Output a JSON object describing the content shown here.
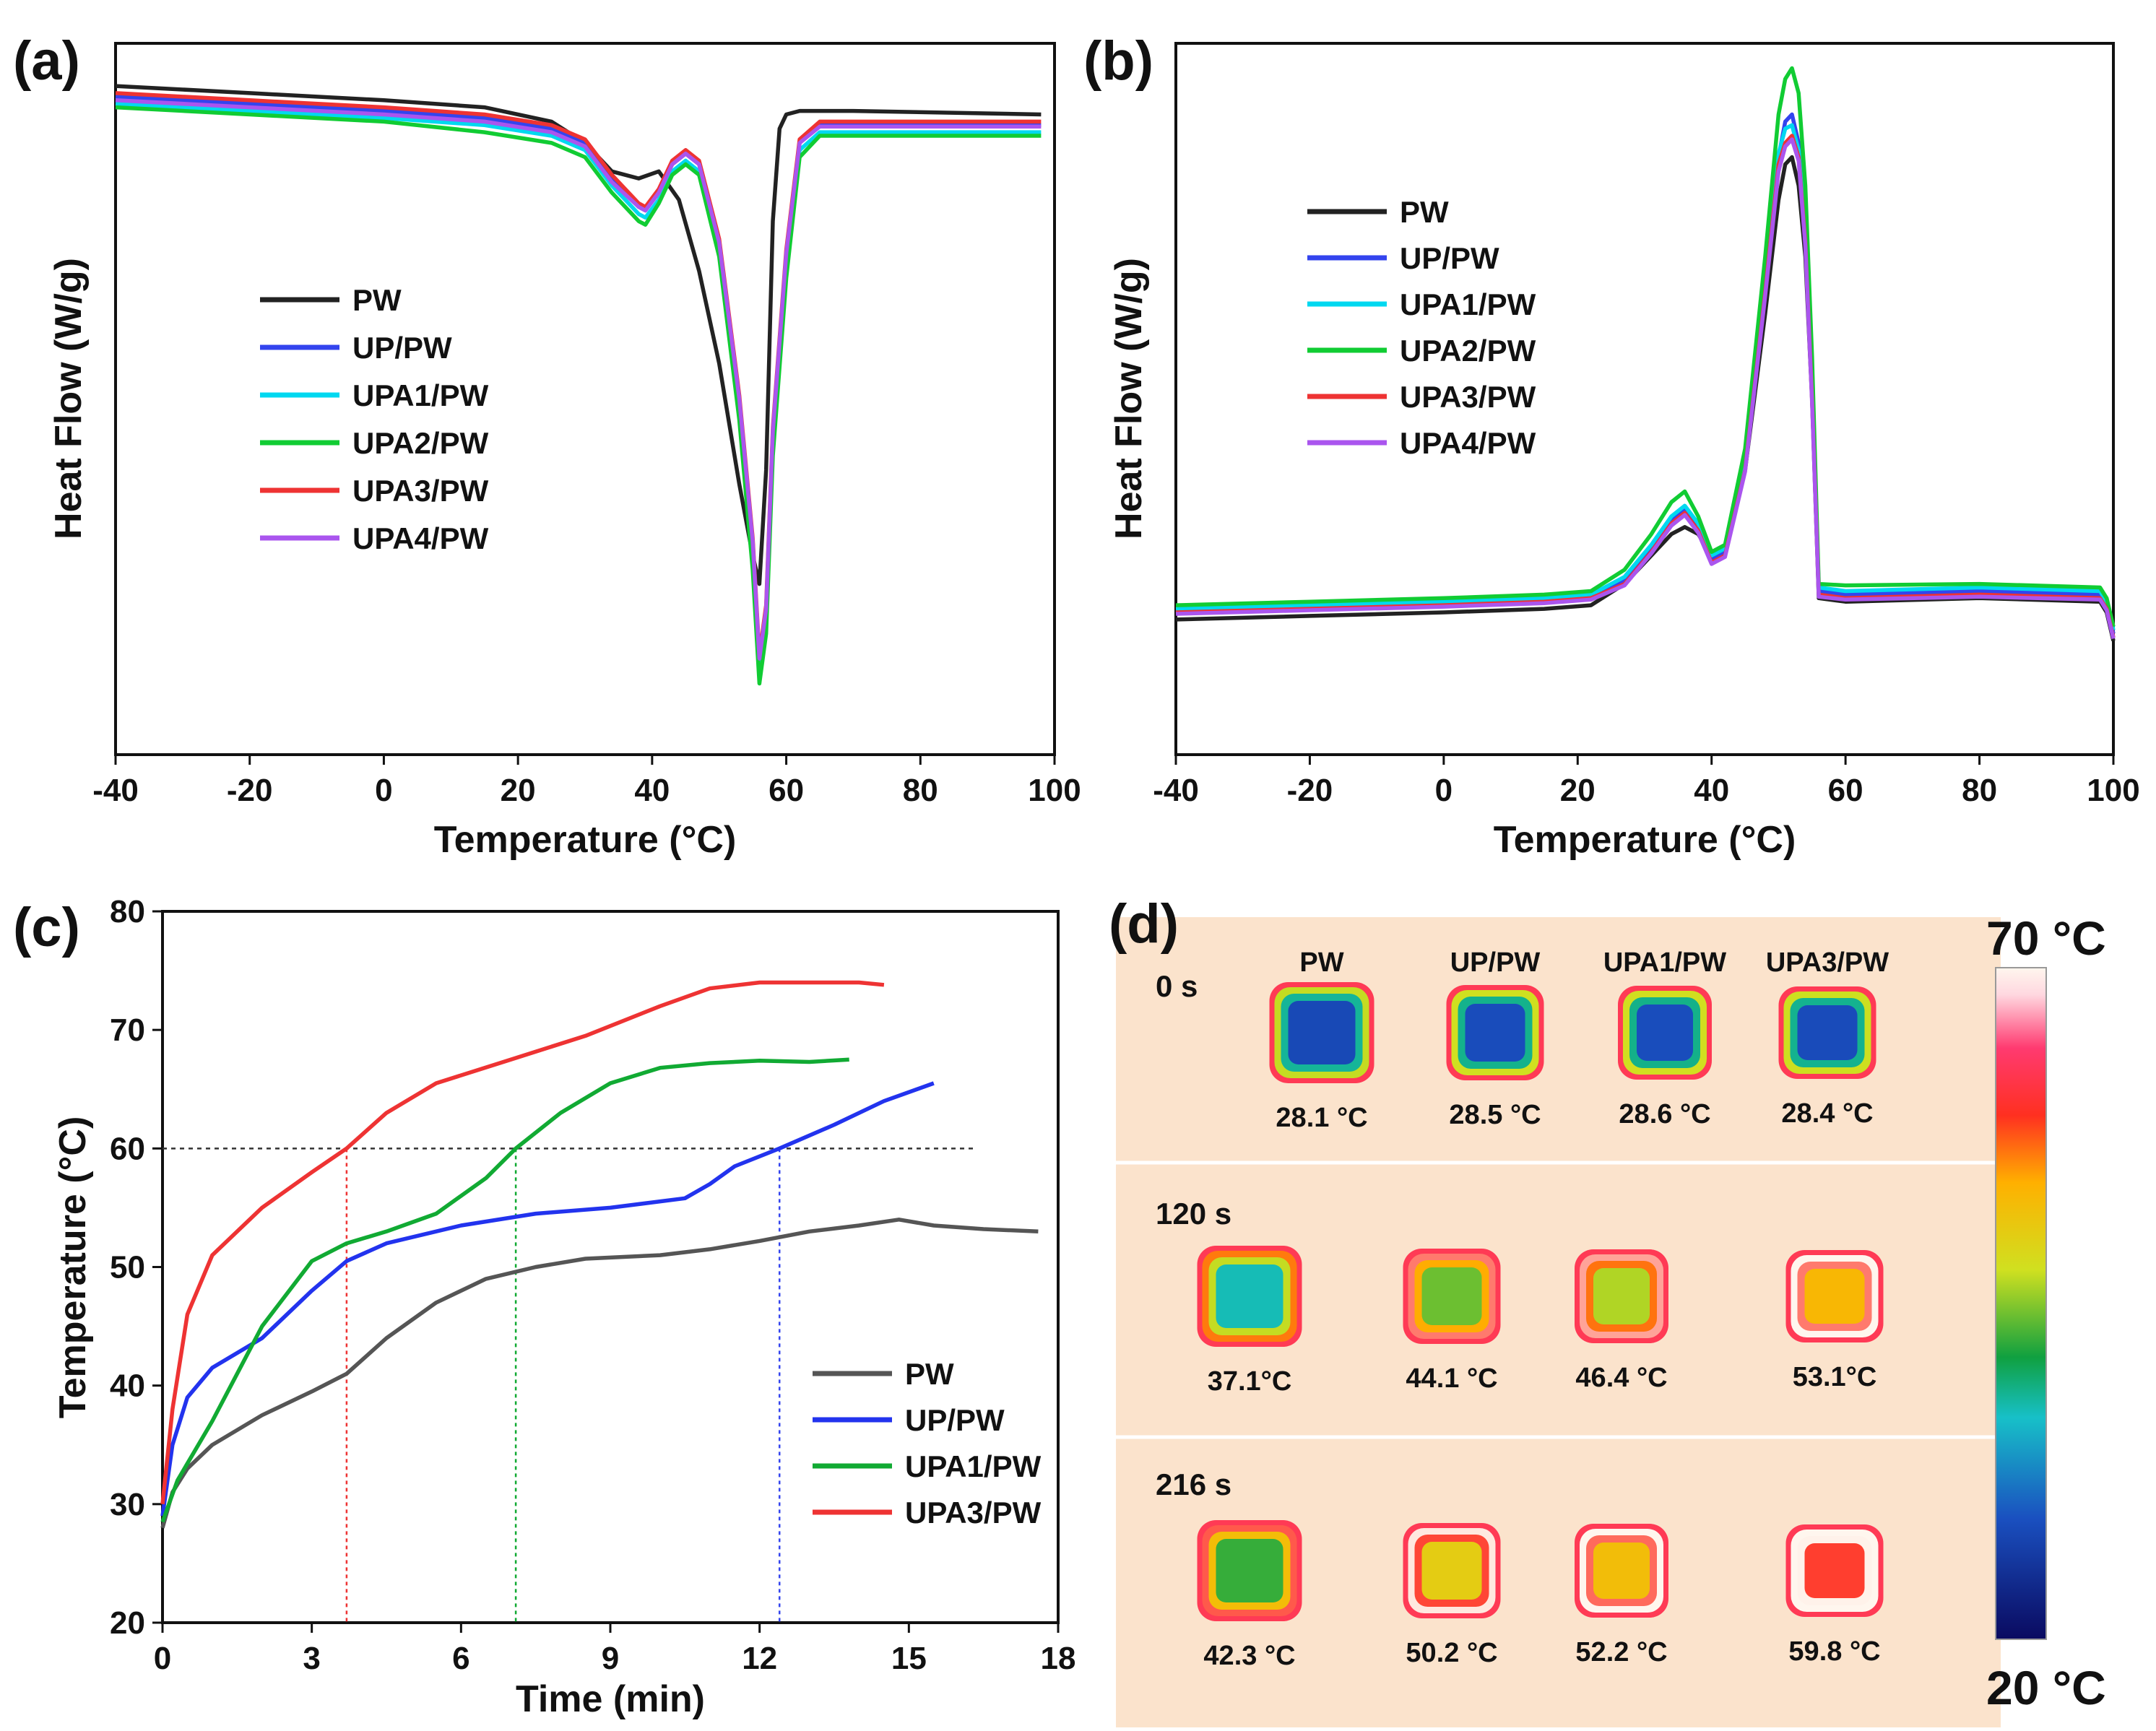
{
  "panels": {
    "a": {
      "letter": "(a)",
      "chart_data": {
        "type": "line",
        "title": "",
        "xlabel": "Temperature (°C)",
        "ylabel": "Heat Flow (W/g)",
        "xlim": [
          -40,
          100
        ],
        "ylim": [
          0,
          1
        ],
        "xticks": [
          "-40",
          "-20",
          "0",
          "20",
          "40",
          "60",
          "80",
          "100"
        ],
        "series": [
          {
            "name": "PW",
            "color": "#222222",
            "x": [
              -40,
              -20,
              0,
              15,
              25,
              30,
              34,
              38,
              41,
              44,
              47,
              50,
              53,
              55,
              56,
              57,
              58,
              59,
              60,
              62,
              70,
              98
            ],
            "y": [
              0.94,
              0.93,
              0.92,
              0.91,
              0.89,
              0.86,
              0.82,
              0.81,
              0.82,
              0.78,
              0.68,
              0.55,
              0.38,
              0.28,
              0.24,
              0.4,
              0.75,
              0.88,
              0.9,
              0.905,
              0.905,
              0.9
            ]
          },
          {
            "name": "UP/PW",
            "color": "#3344ee",
            "x": [
              -40,
              -20,
              0,
              15,
              25,
              30,
              34,
              38,
              39,
              41,
              43,
              45,
              47,
              50,
              53,
              55,
              56,
              57,
              58,
              60,
              62,
              65,
              98
            ],
            "y": [
              0.925,
              0.915,
              0.905,
              0.895,
              0.88,
              0.86,
              0.81,
              0.77,
              0.765,
              0.79,
              0.83,
              0.845,
              0.83,
              0.72,
              0.5,
              0.3,
              0.13,
              0.2,
              0.45,
              0.7,
              0.86,
              0.885,
              0.885
            ]
          },
          {
            "name": "UPA1/PW",
            "color": "#00d8f0",
            "x": [
              -40,
              -20,
              0,
              15,
              25,
              30,
              34,
              38,
              39,
              41,
              43,
              45,
              47,
              50,
              53,
              55,
              56,
              57,
              58,
              60,
              62,
              65,
              98
            ],
            "y": [
              0.915,
              0.905,
              0.895,
              0.885,
              0.87,
              0.85,
              0.8,
              0.76,
              0.755,
              0.78,
              0.82,
              0.835,
              0.82,
              0.71,
              0.49,
              0.29,
              0.12,
              0.19,
              0.44,
              0.69,
              0.85,
              0.875,
              0.875
            ]
          },
          {
            "name": "UPA2/PW",
            "color": "#11cc33",
            "x": [
              -40,
              -20,
              0,
              15,
              25,
              30,
              34,
              38,
              39,
              41,
              43,
              45,
              47,
              50,
              53,
              55,
              56,
              57,
              58,
              60,
              62,
              65,
              98
            ],
            "y": [
              0.91,
              0.9,
              0.89,
              0.875,
              0.86,
              0.84,
              0.79,
              0.75,
              0.745,
              0.775,
              0.815,
              0.83,
              0.815,
              0.7,
              0.47,
              0.26,
              0.1,
              0.17,
              0.42,
              0.67,
              0.84,
              0.87,
              0.87
            ]
          },
          {
            "name": "UPA3/PW",
            "color": "#ee3333",
            "x": [
              -40,
              -20,
              0,
              15,
              25,
              30,
              34,
              38,
              39,
              41,
              43,
              45,
              47,
              50,
              53,
              55,
              56,
              57,
              58,
              60,
              62,
              65,
              98
            ],
            "y": [
              0.93,
              0.92,
              0.91,
              0.9,
              0.885,
              0.865,
              0.815,
              0.775,
              0.77,
              0.795,
              0.835,
              0.85,
              0.835,
              0.725,
              0.505,
              0.305,
              0.14,
              0.21,
              0.46,
              0.71,
              0.865,
              0.89,
              0.89
            ]
          },
          {
            "name": "UPA4/PW",
            "color": "#aa55ee",
            "x": [
              -40,
              -20,
              0,
              15,
              25,
              30,
              34,
              38,
              39,
              41,
              43,
              45,
              47,
              50,
              53,
              55,
              56,
              57,
              58,
              60,
              62,
              65,
              98
            ],
            "y": [
              0.92,
              0.91,
              0.9,
              0.89,
              0.875,
              0.855,
              0.805,
              0.77,
              0.765,
              0.79,
              0.83,
              0.845,
              0.83,
              0.72,
              0.5,
              0.3,
              0.135,
              0.205,
              0.455,
              0.705,
              0.86,
              0.883,
              0.883
            ]
          }
        ]
      }
    },
    "b": {
      "letter": "(b)",
      "chart_data": {
        "type": "line",
        "title": "",
        "xlabel": "Temperature (°C)",
        "ylabel": "Heat Flow (W/g)",
        "xlim": [
          -40,
          100
        ],
        "ylim": [
          0,
          1
        ],
        "xticks": [
          "-40",
          "-20",
          "0",
          "20",
          "40",
          "60",
          "80",
          "100"
        ],
        "series": [
          {
            "name": "PW",
            "color": "#222222",
            "x": [
              -40,
              -20,
              0,
              15,
              22,
              27,
              31,
              34,
              36,
              38,
              40,
              42,
              45,
              48,
              50,
              51,
              52,
              53,
              54,
              55,
              56,
              60,
              80,
              98,
              99,
              100
            ],
            "y": [
              0.19,
              0.195,
              0.2,
              0.205,
              0.21,
              0.24,
              0.28,
              0.31,
              0.32,
              0.31,
              0.28,
              0.29,
              0.4,
              0.62,
              0.78,
              0.83,
              0.84,
              0.8,
              0.7,
              0.5,
              0.22,
              0.215,
              0.22,
              0.215,
              0.2,
              0.16
            ]
          },
          {
            "name": "UP/PW",
            "color": "#3344ee",
            "x": [
              -40,
              -20,
              0,
              15,
              22,
              27,
              31,
              34,
              36,
              38,
              40,
              42,
              45,
              48,
              50,
              51,
              52,
              53,
              54,
              55,
              56,
              60,
              80,
              98,
              99,
              100
            ],
            "y": [
              0.2,
              0.205,
              0.21,
              0.215,
              0.22,
              0.245,
              0.29,
              0.33,
              0.345,
              0.32,
              0.275,
              0.285,
              0.41,
              0.66,
              0.84,
              0.89,
              0.9,
              0.86,
              0.74,
              0.52,
              0.23,
              0.225,
              0.23,
              0.225,
              0.21,
              0.17
            ]
          },
          {
            "name": "UPA1/PW",
            "color": "#00d8f0",
            "x": [
              -40,
              -20,
              0,
              15,
              22,
              27,
              31,
              34,
              36,
              38,
              40,
              42,
              45,
              48,
              50,
              51,
              52,
              53,
              54,
              55,
              56,
              60,
              80,
              98,
              99,
              100
            ],
            "y": [
              0.205,
              0.21,
              0.215,
              0.22,
              0.225,
              0.25,
              0.295,
              0.335,
              0.35,
              0.325,
              0.28,
              0.29,
              0.415,
              0.665,
              0.845,
              0.88,
              0.885,
              0.85,
              0.73,
              0.51,
              0.235,
              0.23,
              0.235,
              0.23,
              0.215,
              0.175
            ]
          },
          {
            "name": "UPA2/PW",
            "color": "#11cc33",
            "x": [
              -40,
              -20,
              0,
              15,
              22,
              27,
              31,
              34,
              36,
              38,
              40,
              42,
              45,
              48,
              50,
              51,
              52,
              53,
              54,
              55,
              56,
              60,
              80,
              98,
              99,
              100
            ],
            "y": [
              0.21,
              0.215,
              0.22,
              0.225,
              0.23,
              0.26,
              0.31,
              0.355,
              0.37,
              0.335,
              0.285,
              0.295,
              0.43,
              0.7,
              0.9,
              0.95,
              0.965,
              0.93,
              0.8,
              0.56,
              0.24,
              0.238,
              0.24,
              0.235,
              0.22,
              0.18
            ]
          },
          {
            "name": "UPA3/PW",
            "color": "#ee3333",
            "x": [
              -40,
              -20,
              0,
              15,
              22,
              27,
              31,
              34,
              36,
              38,
              40,
              42,
              45,
              48,
              50,
              51,
              52,
              53,
              54,
              55,
              56,
              60,
              80,
              98,
              99,
              100
            ],
            "y": [
              0.2,
              0.205,
              0.21,
              0.215,
              0.22,
              0.24,
              0.285,
              0.325,
              0.34,
              0.315,
              0.27,
              0.28,
              0.4,
              0.65,
              0.83,
              0.86,
              0.87,
              0.84,
              0.72,
              0.5,
              0.225,
              0.22,
              0.225,
              0.22,
              0.205,
              0.165
            ]
          },
          {
            "name": "UPA4/PW",
            "color": "#aa55ee",
            "x": [
              -40,
              -20,
              0,
              15,
              22,
              27,
              31,
              34,
              36,
              38,
              40,
              42,
              45,
              48,
              50,
              51,
              52,
              53,
              54,
              55,
              56,
              60,
              80,
              98,
              99,
              100
            ],
            "y": [
              0.198,
              0.203,
              0.208,
              0.213,
              0.218,
              0.238,
              0.283,
              0.322,
              0.337,
              0.312,
              0.268,
              0.278,
              0.398,
              0.645,
              0.82,
              0.855,
              0.865,
              0.835,
              0.715,
              0.495,
              0.222,
              0.218,
              0.222,
              0.218,
              0.203,
              0.163
            ]
          }
        ]
      }
    },
    "c": {
      "letter": "(c)",
      "chart_data": {
        "type": "line",
        "title": "",
        "xlabel": "Time (min)",
        "ylabel": "Temperature (°C)",
        "xlim": [
          0,
          18
        ],
        "ylim": [
          20,
          80
        ],
        "xticks": [
          "0",
          "3",
          "6",
          "9",
          "12",
          "15",
          "18"
        ],
        "yticks": [
          "20",
          "30",
          "40",
          "50",
          "60",
          "70",
          "80"
        ],
        "reference_line": {
          "y": 60,
          "x_end": 16.3
        },
        "markers_at_60": [
          {
            "x": 3.7,
            "color": "#ee3333"
          },
          {
            "x": 7.1,
            "color": "#11aa33"
          },
          {
            "x": 12.4,
            "color": "#3344ee"
          }
        ],
        "series": [
          {
            "name": "PW",
            "color": "#555555",
            "x": [
              0,
              0.2,
              0.5,
              1,
              2,
              3,
              3.7,
              4.5,
              5.5,
              6.5,
              7.5,
              8.5,
              10,
              11,
              12,
              13,
              14,
              14.8,
              15.5,
              16.5,
              17.6
            ],
            "y": [
              28,
              31,
              33,
              35,
              37.5,
              39.5,
              41,
              44,
              47,
              49,
              50,
              50.7,
              51,
              51.5,
              52.2,
              53,
              53.5,
              54,
              53.5,
              53.2,
              53
            ]
          },
          {
            "name": "UP/PW",
            "color": "#2233ee",
            "x": [
              0,
              0.2,
              0.5,
              1,
              2,
              3,
              3.7,
              4.5,
              6,
              7.5,
              9,
              10.5,
              11,
              11.5,
              12.4,
              13.5,
              14.5,
              15.5
            ],
            "y": [
              29,
              35,
              39,
              41.5,
              44,
              48,
              50.5,
              52,
              53.5,
              54.5,
              55,
              55.8,
              57,
              58.5,
              60,
              62,
              64,
              65.5
            ]
          },
          {
            "name": "UPA1/PW",
            "color": "#11aa33",
            "x": [
              0,
              0.3,
              1,
              2,
              3,
              3.7,
              4.5,
              5.5,
              6.5,
              7.1,
              8,
              9,
              10,
              11,
              12,
              13,
              13.8
            ],
            "y": [
              28.5,
              32,
              37,
              45,
              50.5,
              52,
              53,
              54.5,
              57.5,
              60,
              63,
              65.5,
              66.8,
              67.2,
              67.4,
              67.3,
              67.5
            ]
          },
          {
            "name": "UPA3/PW",
            "color": "#ee3333",
            "x": [
              0,
              0.2,
              0.5,
              1,
              2,
              3,
              3.7,
              4.5,
              5.5,
              7,
              8.5,
              10,
              11,
              12,
              13,
              13.5,
              14,
              14.5
            ],
            "y": [
              30,
              38,
              46,
              51,
              55,
              58,
              60,
              63,
              65.5,
              67.5,
              69.5,
              72,
              73.5,
              74,
              74,
              74,
              74,
              73.8
            ]
          }
        ]
      }
    },
    "d": {
      "letter": "(d)",
      "columns": [
        "PW",
        "UP/PW",
        "UPA1/PW",
        "UPA3/PW"
      ],
      "rows": [
        {
          "time": "0 s",
          "temps": [
            "28.1 °C",
            "28.5 °C",
            "28.6 °C",
            "28.4 °C"
          ],
          "values": [
            28.1,
            28.5,
            28.6,
            28.4
          ]
        },
        {
          "time": "120 s",
          "temps": [
            "37.1°C",
            "44.1 °C",
            "46.4 °C",
            "53.1°C"
          ],
          "values": [
            37.1,
            44.1,
            46.4,
            53.1
          ]
        },
        {
          "time": "216 s",
          "temps": [
            "42.3 °C",
            "50.2 °C",
            "52.2 °C",
            "59.8 °C"
          ],
          "values": [
            42.3,
            50.2,
            52.2,
            59.8
          ]
        }
      ],
      "scale": {
        "max_label": "70 °C",
        "min_label": "20 °C",
        "max": 70,
        "min": 20
      },
      "colors": {
        "background": "#fbe3cc"
      }
    }
  }
}
